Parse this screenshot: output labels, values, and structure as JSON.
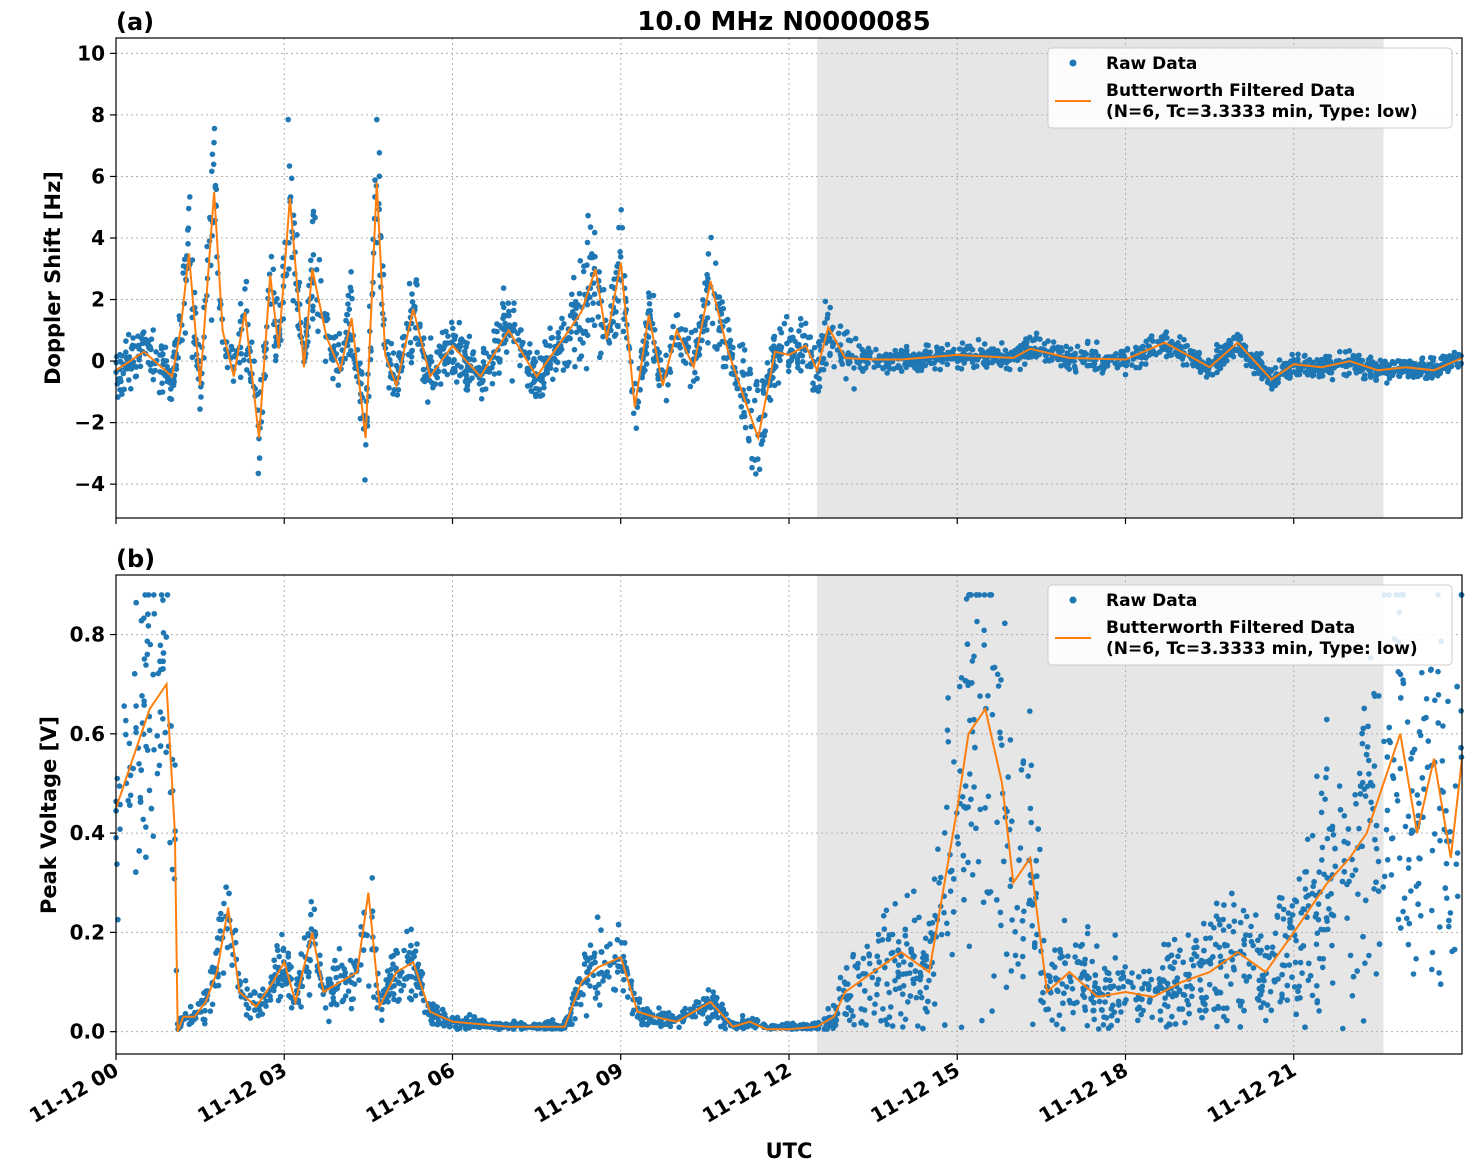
{
  "figure": {
    "title": "10.0 MHz N0000085",
    "xlabel": "UTC",
    "colors": {
      "raw": "#1f77b4",
      "filtered": "#ff7f0e",
      "shade": "#e6e6e6",
      "grid": "#b0b0b0"
    }
  },
  "chart_data": [
    {
      "type": "scatter",
      "panel_label": "(a)",
      "ylabel": "Doppler Shift [Hz]",
      "xlim_hours": [
        0,
        24
      ],
      "ylim": [
        -5.1,
        10.5
      ],
      "yticks": [
        -4,
        -2,
        0,
        2,
        4,
        6,
        8,
        10
      ],
      "ytick_labels": [
        "−4",
        "−2",
        "0",
        "2",
        "4",
        "6",
        "8",
        "10"
      ],
      "grid": true,
      "shaded_interval_hours": [
        12.5,
        22.6
      ],
      "legend": {
        "location": "upper right",
        "raw_label": "Raw Data",
        "filtered_label_line1": "Butterworth Filtered Data",
        "filtered_label_line2": "(N=6, Tc=3.3333 min, Type: low)"
      },
      "filtered_series": {
        "name": "Butterworth Filtered Data",
        "x_hours": [
          0,
          0.5,
          1.0,
          1.15,
          1.3,
          1.5,
          1.75,
          1.9,
          2.1,
          2.3,
          2.55,
          2.75,
          2.9,
          3.1,
          3.35,
          3.5,
          3.75,
          4.0,
          4.2,
          4.45,
          4.65,
          4.8,
          5.0,
          5.3,
          5.6,
          6.0,
          6.5,
          7.0,
          7.5,
          8.0,
          8.3,
          8.55,
          8.75,
          9.0,
          9.25,
          9.5,
          9.75,
          10.0,
          10.3,
          10.6,
          10.9,
          11.2,
          11.45,
          11.75,
          12.0,
          12.3,
          12.5,
          12.7,
          13.0,
          13.5,
          14.0,
          15.0,
          16.0,
          16.3,
          17.0,
          18.0,
          18.7,
          19.0,
          19.5,
          20.0,
          20.6,
          21.0,
          21.5,
          22.0,
          22.5,
          23.0,
          23.5,
          24.0
        ],
        "values": [
          -0.3,
          0.3,
          -0.5,
          1.0,
          3.5,
          -0.8,
          5.5,
          1.0,
          -0.5,
          1.6,
          -2.5,
          2.8,
          0.4,
          5.3,
          -0.2,
          3.0,
          0.8,
          -0.3,
          1.4,
          -2.5,
          5.8,
          0.2,
          -0.8,
          1.7,
          -0.5,
          0.5,
          -0.5,
          1.0,
          -0.5,
          0.8,
          1.6,
          3.0,
          0.7,
          3.2,
          -1.5,
          1.5,
          -0.8,
          1.0,
          -0.2,
          2.6,
          0.4,
          -1.2,
          -2.5,
          0.3,
          0.2,
          0.5,
          -0.3,
          1.1,
          0.1,
          0.05,
          0.05,
          0.2,
          0.1,
          0.4,
          0.1,
          0.05,
          0.6,
          0.3,
          -0.2,
          0.6,
          -0.6,
          -0.1,
          -0.2,
          0.0,
          -0.3,
          -0.2,
          -0.3,
          0.1
        ]
      }
    },
    {
      "type": "scatter",
      "panel_label": "(b)",
      "ylabel": "Peak Voltage [V]",
      "xlim_hours": [
        0,
        24
      ],
      "ylim": [
        -0.045,
        0.92
      ],
      "yticks": [
        0.0,
        0.2,
        0.4,
        0.6,
        0.8
      ],
      "ytick_labels": [
        "0.0",
        "0.2",
        "0.4",
        "0.6",
        "0.8"
      ],
      "grid": true,
      "shaded_interval_hours": [
        12.5,
        22.6
      ],
      "legend": {
        "location": "upper right",
        "raw_label": "Raw Data",
        "filtered_label_line1": "Butterworth Filtered Data",
        "filtered_label_line2": "(N=6, Tc=3.3333 min, Type: low)"
      },
      "xticks_hours": [
        0,
        3,
        6,
        9,
        12,
        15,
        18,
        21
      ],
      "xtick_labels": [
        "11-12 00",
        "11-12 03",
        "11-12 06",
        "11-12 09",
        "11-12 12",
        "11-12 15",
        "11-12 18",
        "11-12 21"
      ],
      "filtered_series": {
        "name": "Butterworth Filtered Data",
        "x_hours": [
          0,
          0.3,
          0.6,
          0.9,
          1.05,
          1.1,
          1.2,
          1.4,
          1.6,
          1.8,
          2.0,
          2.2,
          2.5,
          2.8,
          3.0,
          3.2,
          3.5,
          3.7,
          4.0,
          4.3,
          4.5,
          4.7,
          5.0,
          5.3,
          5.6,
          6.0,
          7.0,
          8.0,
          8.3,
          8.6,
          9.0,
          9.3,
          9.6,
          10.0,
          10.3,
          10.6,
          11.0,
          11.3,
          11.6,
          12.0,
          12.5,
          12.8,
          13.0,
          13.5,
          14.0,
          14.5,
          15.0,
          15.2,
          15.5,
          15.8,
          16.0,
          16.3,
          16.6,
          17.0,
          17.5,
          18.0,
          18.5,
          19.0,
          19.5,
          20.0,
          20.5,
          21.0,
          21.3,
          21.6,
          22.0,
          22.3,
          22.6,
          22.9,
          23.2,
          23.5,
          23.8,
          24.0
        ],
        "values": [
          0.45,
          0.55,
          0.65,
          0.7,
          0.4,
          0.0,
          0.03,
          0.03,
          0.06,
          0.12,
          0.25,
          0.08,
          0.05,
          0.1,
          0.14,
          0.06,
          0.2,
          0.08,
          0.1,
          0.12,
          0.28,
          0.05,
          0.12,
          0.14,
          0.04,
          0.02,
          0.01,
          0.01,
          0.1,
          0.13,
          0.15,
          0.04,
          0.03,
          0.02,
          0.04,
          0.06,
          0.01,
          0.02,
          0.005,
          0.005,
          0.01,
          0.03,
          0.08,
          0.12,
          0.16,
          0.12,
          0.45,
          0.6,
          0.65,
          0.5,
          0.3,
          0.35,
          0.08,
          0.12,
          0.07,
          0.08,
          0.07,
          0.1,
          0.12,
          0.16,
          0.12,
          0.2,
          0.25,
          0.3,
          0.35,
          0.4,
          0.5,
          0.6,
          0.4,
          0.55,
          0.35,
          0.55
        ]
      }
    }
  ]
}
